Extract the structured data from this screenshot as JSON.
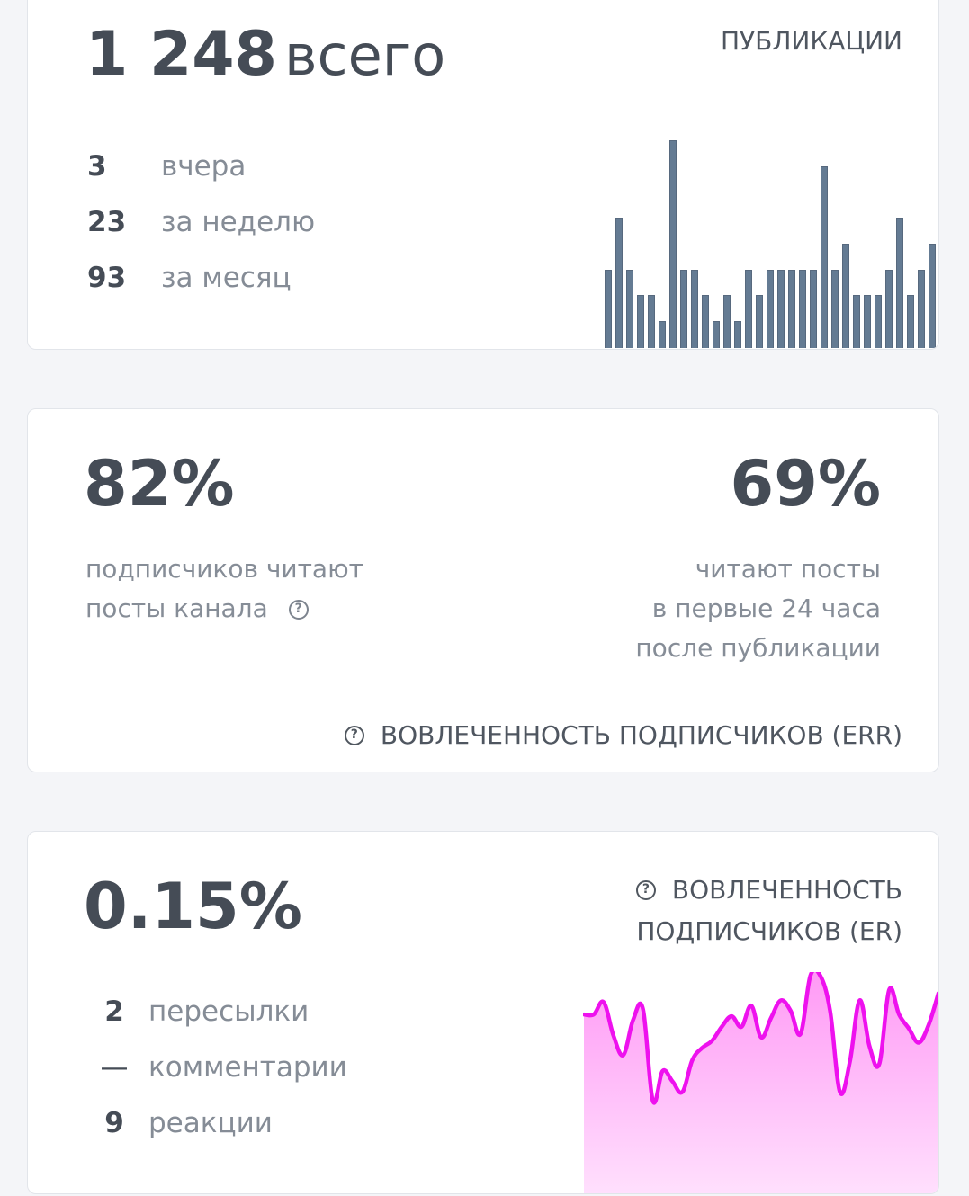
{
  "publications": {
    "total_number": "1 248",
    "total_suffix": "всего",
    "section_label": "ПУБЛИКАЦИИ",
    "stats": [
      {
        "value": "3",
        "label": "вчера"
      },
      {
        "value": "23",
        "label": "за неделю"
      },
      {
        "value": "93",
        "label": "за месяц"
      }
    ],
    "bar_color": "#647b93"
  },
  "err": {
    "left_value": "82%",
    "left_desc_line1": "подписчиков читают",
    "left_desc_line2": "посты канала",
    "right_value": "69%",
    "right_desc_line1": "читают посты",
    "right_desc_line2": "в первые 24 часа",
    "right_desc_line3": "после публикации",
    "section_label": "ВОВЛЕЧЕННОСТЬ ПОДПИСЧИКОВ (ERR)",
    "help_icon": "?"
  },
  "er": {
    "value": "0.15%",
    "section_label_line1": "ВОВЛЕЧЕННОСТЬ",
    "section_label_line2": "ПОДПИСЧИКОВ (ER)",
    "help_icon": "?",
    "stats": [
      {
        "value": "2",
        "label": "пересылки"
      },
      {
        "value": "—",
        "label": "комментарии"
      },
      {
        "value": "9",
        "label": "реакции"
      }
    ],
    "line_color": "#ee11ee"
  },
  "chart_data": [
    {
      "type": "bar",
      "title": "ПУБЛИКАЦИИ",
      "xlabel": "",
      "ylabel": "",
      "categories": [
        "1",
        "2",
        "3",
        "4",
        "5",
        "6",
        "7",
        "8",
        "9",
        "10",
        "11",
        "12",
        "13",
        "14",
        "15",
        "16",
        "17",
        "18",
        "19",
        "20",
        "21",
        "22",
        "23",
        "24",
        "25",
        "26",
        "27",
        "28",
        "29",
        "30",
        "31"
      ],
      "values": [
        3,
        5,
        3,
        2,
        2,
        1,
        8,
        3,
        3,
        2,
        1,
        2,
        1,
        3,
        2,
        3,
        3,
        3,
        3,
        3,
        7,
        3,
        4,
        2,
        2,
        2,
        3,
        5,
        2,
        3,
        4
      ],
      "ylim": [
        0,
        8
      ],
      "grid": false
    },
    {
      "type": "area",
      "title": "ВОВЛЕЧЕННОСТЬ ПОДПИСЧИКОВ (ER)",
      "xlabel": "",
      "ylabel": "",
      "x": [
        0,
        1,
        2,
        3,
        4,
        5,
        6,
        7,
        8,
        9,
        10,
        11,
        12,
        13,
        14,
        15,
        16,
        17,
        18,
        19,
        20,
        21,
        22,
        23,
        24,
        25,
        26,
        27,
        28,
        29,
        30,
        31,
        32,
        33,
        34,
        35,
        36
      ],
      "values": [
        0.78,
        0.78,
        0.85,
        0.66,
        0.55,
        0.75,
        0.81,
        0.29,
        0.46,
        0.4,
        0.34,
        0.52,
        0.59,
        0.63,
        0.71,
        0.77,
        0.71,
        0.83,
        0.65,
        0.76,
        0.86,
        0.8,
        0.67,
        1.0,
        1.0,
        0.8,
        0.34,
        0.51,
        0.86,
        0.6,
        0.5,
        0.92,
        0.78,
        0.7,
        0.62,
        0.72,
        0.9
      ],
      "grid": false
    }
  ]
}
